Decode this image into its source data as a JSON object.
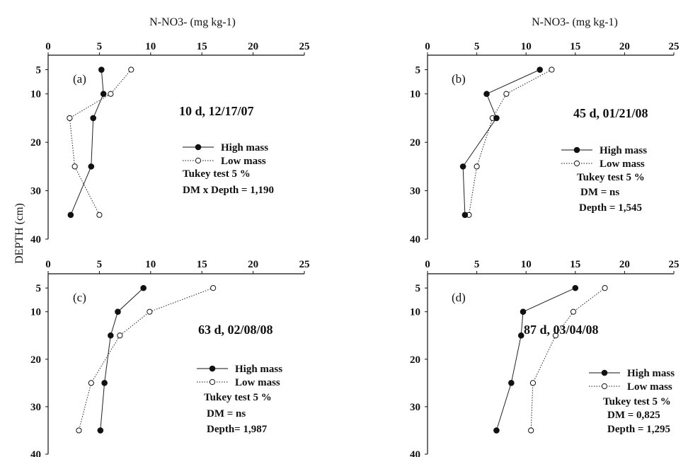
{
  "figure": {
    "top_axis_labels": [
      "N-NO3- (mg kg-1)",
      "N-NO3- (mg kg-1)"
    ],
    "ylabel": "DEPTH (cm)",
    "x_ticks": [
      "0",
      "5",
      "10",
      "15",
      "20",
      "25"
    ],
    "y_ticks": [
      "5",
      "10",
      "20",
      "30",
      "40"
    ],
    "legend": {
      "high": "High mass",
      "low": "Low mass"
    },
    "colors": {
      "high_marker": "#111111",
      "low_marker": "#ffffff",
      "line": "#222222"
    }
  },
  "chart_data": [
    {
      "type": "line",
      "panel": "(a)",
      "title": "10 d, 12/17/07",
      "xlabel": "N-NO3- (mg kg-1)",
      "ylabel": "DEPTH (cm)",
      "xlim": [
        0,
        25
      ],
      "ylim": [
        40,
        2
      ],
      "depths": [
        5,
        10,
        15,
        25,
        35
      ],
      "series": [
        {
          "name": "High mass",
          "values": [
            5.2,
            5.4,
            4.4,
            4.2,
            2.2
          ]
        },
        {
          "name": "Low mass",
          "values": [
            8.1,
            6.1,
            2.1,
            2.6,
            5.0
          ]
        }
      ],
      "stats": [
        "Tukey test 5 %",
        "DM x Depth = 1,190"
      ]
    },
    {
      "type": "line",
      "panel": "(b)",
      "title": "45 d, 01/21/08",
      "xlabel": "N-NO3- (mg kg-1)",
      "ylabel": "DEPTH (cm)",
      "xlim": [
        0,
        25
      ],
      "ylim": [
        40,
        2
      ],
      "depths": [
        5,
        10,
        15,
        25,
        35
      ],
      "series": [
        {
          "name": "High mass",
          "values": [
            11.4,
            6.0,
            7.0,
            3.6,
            3.8
          ]
        },
        {
          "name": "Low mass",
          "values": [
            12.6,
            8.0,
            6.6,
            5.0,
            4.2
          ]
        }
      ],
      "stats": [
        "Tukey test 5 %",
        "DM = ns",
        "Depth = 1,545"
      ]
    },
    {
      "type": "line",
      "panel": "(c)",
      "title": "63 d, 02/08/08",
      "xlabel": "N-NO3- (mg kg-1)",
      "ylabel": "DEPTH (cm)",
      "xlim": [
        0,
        25
      ],
      "ylim": [
        40,
        2
      ],
      "depths": [
        5,
        10,
        15,
        25,
        35
      ],
      "series": [
        {
          "name": "High mass",
          "values": [
            9.3,
            6.8,
            6.1,
            5.5,
            5.1
          ]
        },
        {
          "name": "Low mass",
          "values": [
            16.1,
            9.9,
            7.0,
            4.2,
            3.0
          ]
        }
      ],
      "stats": [
        "Tukey test 5 %",
        "DM = ns",
        "Depth= 1,987"
      ]
    },
    {
      "type": "line",
      "panel": "(d)",
      "title": "87 d, 03/04/08",
      "xlabel": "N-NO3- (mg kg-1)",
      "ylabel": "DEPTH (cm)",
      "xlim": [
        0,
        25
      ],
      "ylim": [
        40,
        2
      ],
      "depths": [
        5,
        10,
        15,
        25,
        35
      ],
      "series": [
        {
          "name": "High mass",
          "values": [
            15.0,
            9.7,
            9.5,
            8.5,
            7.0
          ]
        },
        {
          "name": "Low mass",
          "values": [
            18.0,
            14.8,
            13.0,
            10.7,
            10.5
          ]
        }
      ],
      "stats": [
        "Tukey test 5 %",
        "DM = 0,825",
        "Depth = 1,295"
      ]
    }
  ]
}
